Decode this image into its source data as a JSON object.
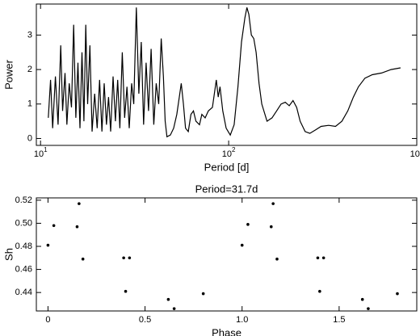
{
  "chart_data": [
    {
      "type": "line",
      "xlabel": "Period [d]",
      "ylabel": "Power",
      "xscale": "log",
      "xlim": [
        9.5,
        1000
      ],
      "ylim": [
        -0.2,
        3.9
      ],
      "xticks": [
        {
          "value": 10,
          "label": "10",
          "exponent": "1"
        },
        {
          "value": 100,
          "label": "10",
          "exponent": "2"
        },
        {
          "value": 1000,
          "label": "10",
          "exponent": "3"
        }
      ],
      "yticks": [
        0,
        1,
        2,
        3
      ],
      "color": "#000000",
      "x": [
        11,
        11.3,
        11.6,
        12,
        12.4,
        12.8,
        13.1,
        13.5,
        13.8,
        14.2,
        14.6,
        15,
        15.4,
        15.8,
        16.2,
        16.6,
        17,
        17.4,
        17.8,
        18.3,
        18.8,
        19.4,
        20,
        20.6,
        21.2,
        21.8,
        22.4,
        23,
        23.6,
        24.3,
        25,
        25.7,
        26.4,
        27.2,
        28,
        28.8,
        29.6,
        30.5,
        31.3,
        32.3,
        33.3,
        34.3,
        35.3,
        36.4,
        37.5,
        38.7,
        40,
        41.2,
        42.5,
        43.8,
        45,
        46,
        47,
        49,
        51,
        53,
        55,
        56,
        57.5,
        59,
        61,
        63,
        65,
        67,
        70,
        72,
        75,
        78,
        82,
        86,
        88,
        90,
        93,
        97,
        102,
        107,
        112,
        117,
        122,
        125,
        128,
        132,
        136,
        140,
        145,
        150,
        160,
        170,
        180,
        190,
        200,
        210,
        220,
        230,
        240,
        255,
        270,
        290,
        310,
        340,
        370,
        400,
        430,
        460,
        490,
        530,
        580,
        650,
        730,
        820
      ],
      "values": [
        0.6,
        1.7,
        0.3,
        1.8,
        0.4,
        2.7,
        0.8,
        1.9,
        0.4,
        1.6,
        0.9,
        3.3,
        0.6,
        2.2,
        0.3,
        2.5,
        0.5,
        3.3,
        1.0,
        2.7,
        0.2,
        1.3,
        0.3,
        1.7,
        0.2,
        1.6,
        0.4,
        1.2,
        0.2,
        1.8,
        0.5,
        1.7,
        0.3,
        2.5,
        0.6,
        1.5,
        0.3,
        1.6,
        1.0,
        3.8,
        1.3,
        2.8,
        0.4,
        2.2,
        0.8,
        2.6,
        0.4,
        1.6,
        1.0,
        2.9,
        1.8,
        0.5,
        0.05,
        0.1,
        0.3,
        0.7,
        1.3,
        1.6,
        1.0,
        0.3,
        0.2,
        0.7,
        0.8,
        0.5,
        0.4,
        0.7,
        0.6,
        0.8,
        0.9,
        1.7,
        1.2,
        1.5,
        0.8,
        0.3,
        0.1,
        0.4,
        1.5,
        2.8,
        3.5,
        3.8,
        3.6,
        3.0,
        2.9,
        2.5,
        1.6,
        1.0,
        0.5,
        0.6,
        0.8,
        1.0,
        1.05,
        0.95,
        1.1,
        0.9,
        0.5,
        0.2,
        0.15,
        0.25,
        0.35,
        0.38,
        0.35,
        0.5,
        0.8,
        1.2,
        1.5,
        1.75,
        1.85,
        1.9,
        2.0,
        2.05
      ]
    },
    {
      "type": "scatter",
      "title": "Period=31.7d",
      "xlabel": "Phase",
      "ylabel": "Sh",
      "xlim": [
        -0.06,
        1.9
      ],
      "ylim": [
        0.424,
        0.522
      ],
      "xticks": [
        0,
        0.5,
        {
          "value": 1.0,
          "label": "1.0"
        },
        1.5
      ],
      "yticks": [
        0.44,
        0.46,
        0.48,
        {
          "value": 0.5,
          "label": "0.50"
        },
        0.52
      ],
      "color": "#000000",
      "x": [
        0.0,
        0.03,
        0.15,
        0.16,
        0.18,
        0.39,
        0.4,
        0.42,
        0.62,
        0.65,
        0.8,
        1.0,
        1.03,
        1.15,
        1.16,
        1.18,
        1.39,
        1.4,
        1.42,
        1.62,
        1.65,
        1.8
      ],
      "values": [
        0.481,
        0.498,
        0.497,
        0.517,
        0.469,
        0.47,
        0.441,
        0.47,
        0.434,
        0.426,
        0.439,
        0.481,
        0.499,
        0.497,
        0.517,
        0.469,
        0.47,
        0.441,
        0.47,
        0.434,
        0.426,
        0.439
      ]
    }
  ]
}
